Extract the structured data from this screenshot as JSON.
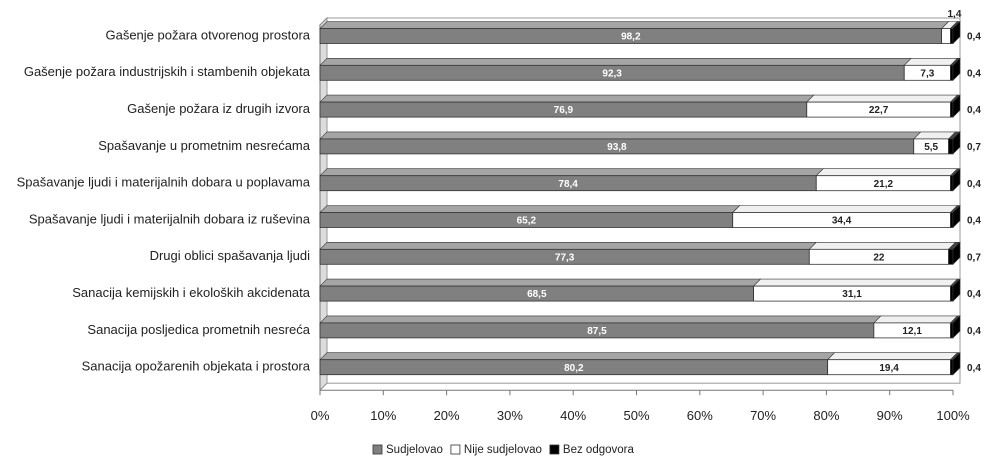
{
  "chart_data": {
    "type": "bar",
    "orientation": "horizontal",
    "stacked": "percent",
    "categories": [
      "Gašenje požara otvorenog prostora",
      "Gašenje požara industrijskih i stambenih objekata",
      "Gašenje požara iz drugih izvora",
      "Spašavanje u prometnim nesrećama",
      "Spašavanje ljudi i materijalnih dobara u poplavama",
      "Spašavanje ljudi i materijalnih dobara iz ruševina",
      "Drugi oblici spašavanja ljudi",
      "Sanacija kemijskih i ekoloških akcidenata",
      "Sanacija posljedica prometnih nesreća",
      "Sanacija opožarenih objekata i prostora"
    ],
    "series": [
      {
        "name": "Sudjelovao",
        "color": "#808080",
        "values": [
          98.2,
          92.3,
          76.9,
          93.8,
          78.4,
          65.2,
          77.3,
          68.5,
          87.5,
          80.2
        ]
      },
      {
        "name": "Nije sudjelovao",
        "color": "#ffffff",
        "values": [
          1.4,
          7.3,
          22.7,
          5.5,
          21.2,
          34.4,
          22,
          31.1,
          12.1,
          19.4
        ]
      },
      {
        "name": "Bez odgovora",
        "color": "#000000",
        "values": [
          0.4,
          0.4,
          0.4,
          0.7,
          0.4,
          0.4,
          0.7,
          0.4,
          0.4,
          0.4
        ]
      }
    ],
    "value_labels": {
      "Sudjelovao": [
        "98,2",
        "92,3",
        "76,9",
        "93,8",
        "78,4",
        "65,2",
        "77,3",
        "68,5",
        "87,5",
        "80,2"
      ],
      "Nije sudjelovao": [
        "1,4",
        "7,3",
        "22,7",
        "5,5",
        "21,2",
        "34,4",
        "22",
        "31,1",
        "12,1",
        "19,4"
      ],
      "Bez odgovora": [
        "0,4",
        "0,4",
        "0,4",
        "0,7",
        "0,4",
        "0,4",
        "0,7",
        "0,4",
        "0,4",
        "0,4"
      ]
    },
    "xlim": [
      0,
      100
    ],
    "xticks": [
      "0%",
      "10%",
      "20%",
      "30%",
      "40%",
      "50%",
      "60%",
      "70%",
      "80%",
      "90%",
      "100%"
    ],
    "title": "",
    "xlabel": "",
    "ylabel": "",
    "grid": false,
    "legend": "bottom",
    "style": "3d"
  }
}
